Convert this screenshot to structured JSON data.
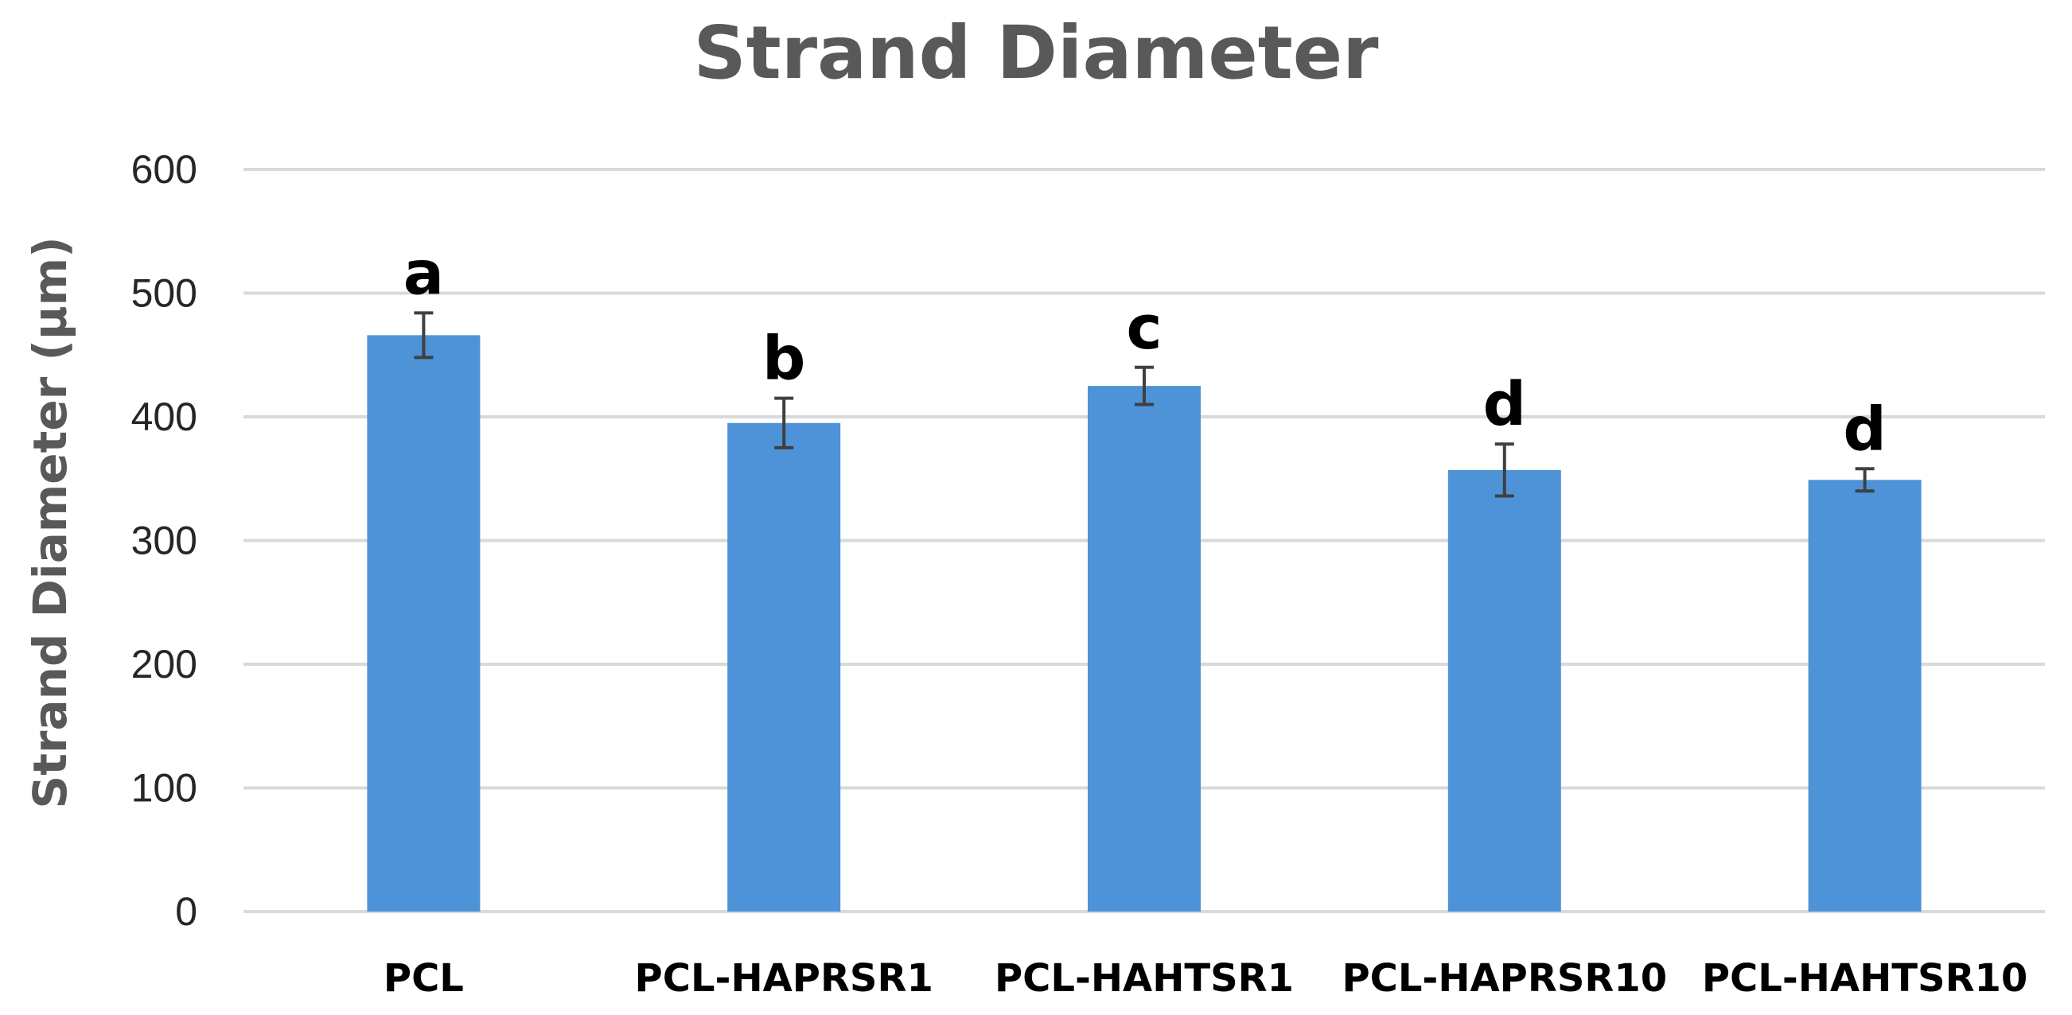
{
  "chart_data": {
    "type": "bar",
    "title": "Strand Diameter",
    "xlabel": "",
    "ylabel": "Strand Diameter (µm)",
    "ylim": [
      0,
      600
    ],
    "yticks": [
      0,
      100,
      200,
      300,
      400,
      500,
      600
    ],
    "grid": true,
    "categories": [
      "PCL",
      "PCL-HAPRSR1",
      "PCL-HAHTSR1",
      "PCL-HAPRSR10",
      "PCL-HAHTSR10"
    ],
    "values": [
      466,
      395,
      425,
      357,
      349
    ],
    "error": [
      18,
      20,
      15,
      21,
      9
    ],
    "significance_letters": [
      "a",
      "b",
      "c",
      "d",
      "d"
    ],
    "colors": {
      "bar": "#4E93D8",
      "grid": "#D9D9D9",
      "error_bar": "#404040"
    }
  }
}
